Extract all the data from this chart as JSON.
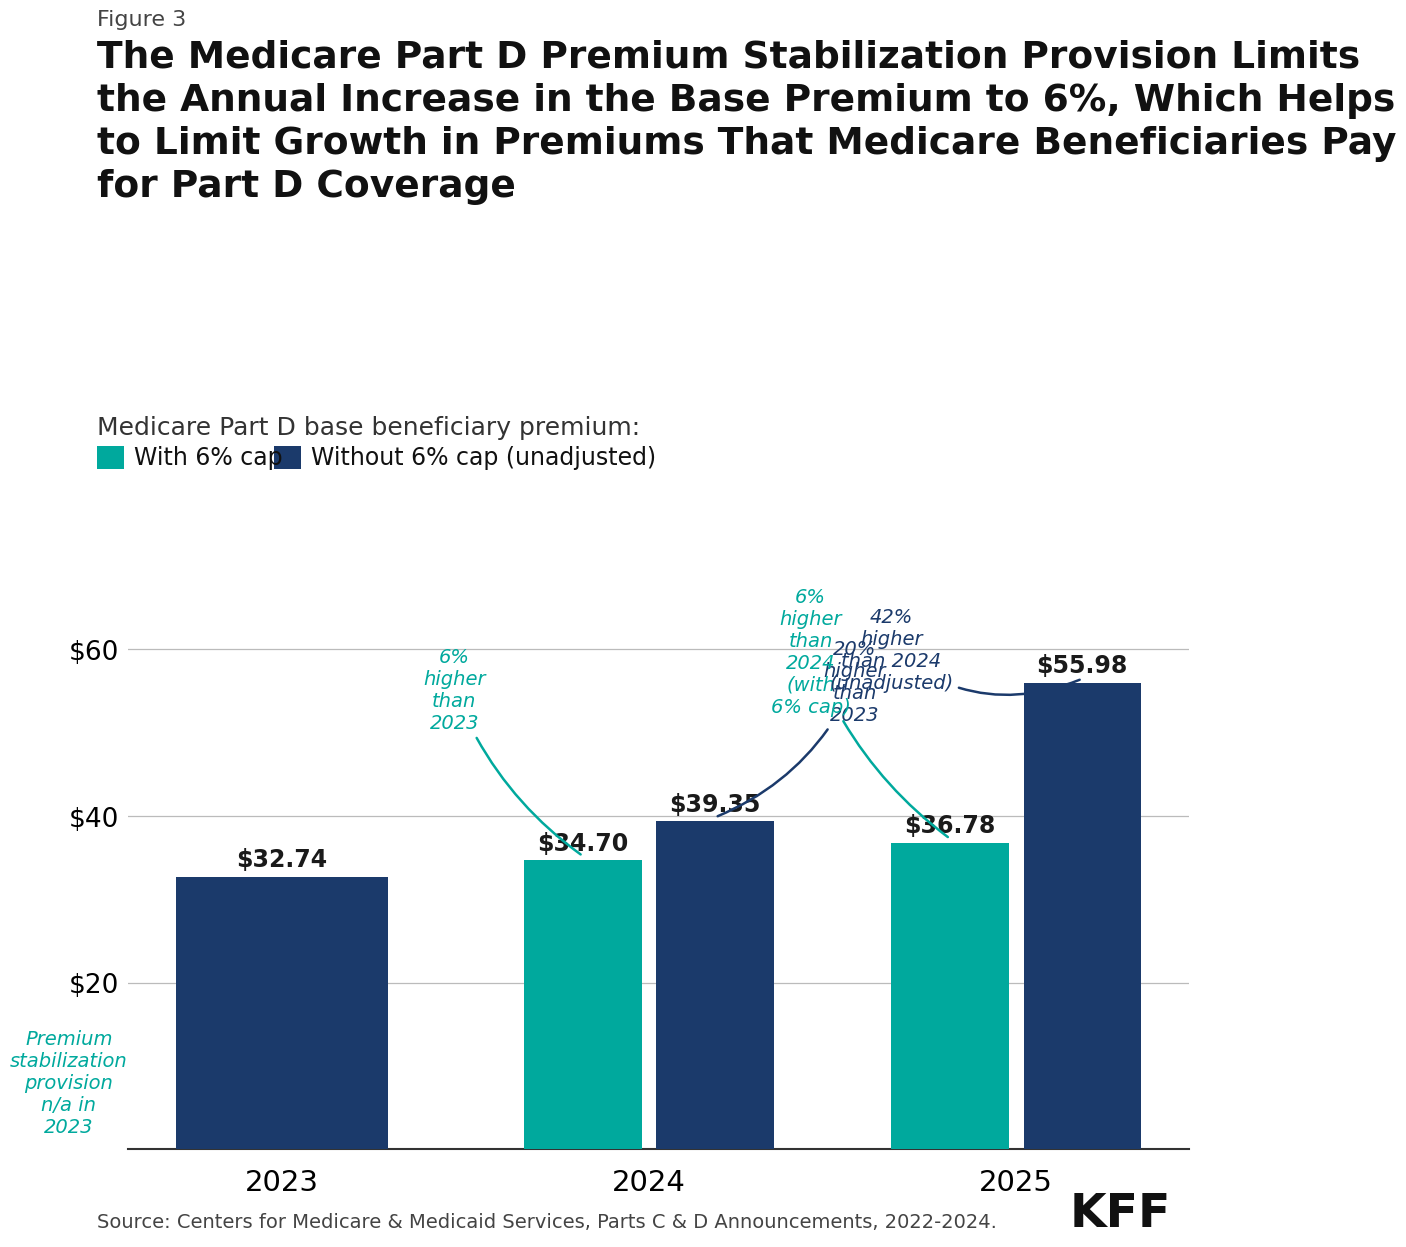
{
  "figure_label": "Figure 3",
  "title_line1": "The Medicare Part D Premium Stabilization Provision Limits",
  "title_line2": "the Annual Increase in the Base Premium to 6%, Which Helps",
  "title_line3": "to Limit Growth in Premiums That Medicare Beneficiaries Pay",
  "title_line4": "for Part D Coverage",
  "subtitle": "Medicare Part D base beneficiary premium:",
  "legend_green": "With 6% cap",
  "legend_blue": "Without 6% cap (unadjusted)",
  "color_green": "#00A99D",
  "color_blue": "#1B3A6B",
  "years": [
    "2023",
    "2024",
    "2025"
  ],
  "values_green": [
    null,
    34.7,
    36.78
  ],
  "values_blue": [
    32.74,
    39.35,
    55.98
  ],
  "ylim": [
    0,
    68
  ],
  "yticks": [
    20,
    40,
    60
  ],
  "source": "Source: Centers for Medicare & Medicaid Services, Parts C & D Announcements, 2022-2024.",
  "background_color": "#FFFFFF"
}
